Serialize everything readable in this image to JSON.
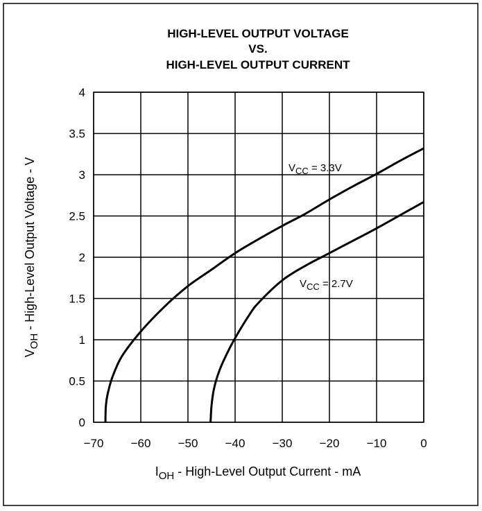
{
  "chart_data": {
    "type": "line",
    "title_lines": [
      "HIGH-LEVEL OUTPUT VOLTAGE",
      "VS.",
      "HIGH-LEVEL OUTPUT CURRENT"
    ],
    "xlabel": {
      "main": "I",
      "sub": "OH",
      "rest": " - High-Level Output Current - mA"
    },
    "ylabel": {
      "main": "V",
      "sub": "OH",
      "rest": " - High-Level Output Voltage - V"
    },
    "xlim": [
      -70,
      0
    ],
    "ylim": [
      0,
      4
    ],
    "x_ticks": [
      -70,
      -60,
      -50,
      -40,
      -30,
      -20,
      -10,
      0
    ],
    "x_tick_labels": [
      "−70",
      "−60",
      "−50",
      "−40",
      "−30",
      "−20",
      "−10",
      "0"
    ],
    "y_ticks": [
      0,
      0.5,
      1,
      1.5,
      2,
      2.5,
      3,
      3.5,
      4
    ],
    "y_tick_labels": [
      "0",
      "0.5",
      "1",
      "1.5",
      "2",
      "2.5",
      "3",
      "3.5",
      "4"
    ],
    "grid": true,
    "series": [
      {
        "name": "VCC = 3.3V",
        "label": {
          "main": "V",
          "sub": "CC",
          "rest": " = 3.3V"
        },
        "points": [
          [
            -67.5,
            0
          ],
          [
            -67.4,
            0.2
          ],
          [
            -67,
            0.35
          ],
          [
            -66,
            0.55
          ],
          [
            -64,
            0.8
          ],
          [
            -60,
            1.1
          ],
          [
            -55,
            1.4
          ],
          [
            -50,
            1.65
          ],
          [
            -45,
            1.85
          ],
          [
            -40,
            2.05
          ],
          [
            -35,
            2.22
          ],
          [
            -30,
            2.38
          ],
          [
            -25,
            2.53
          ],
          [
            -20,
            2.7
          ],
          [
            -15,
            2.86
          ],
          [
            -10,
            3.01
          ],
          [
            -5,
            3.17
          ],
          [
            0,
            3.32
          ]
        ]
      },
      {
        "name": "VCC = 2.7V",
        "label": {
          "main": "V",
          "sub": "CC",
          "rest": " = 2.7V"
        },
        "points": [
          [
            -45.2,
            0
          ],
          [
            -45,
            0.2
          ],
          [
            -44.5,
            0.4
          ],
          [
            -43.5,
            0.6
          ],
          [
            -42,
            0.8
          ],
          [
            -40,
            1.02
          ],
          [
            -37,
            1.3
          ],
          [
            -35,
            1.45
          ],
          [
            -30,
            1.72
          ],
          [
            -25,
            1.9
          ],
          [
            -20,
            2.05
          ],
          [
            -15,
            2.2
          ],
          [
            -10,
            2.35
          ],
          [
            -5,
            2.51
          ],
          [
            0,
            2.67
          ]
        ]
      }
    ]
  }
}
